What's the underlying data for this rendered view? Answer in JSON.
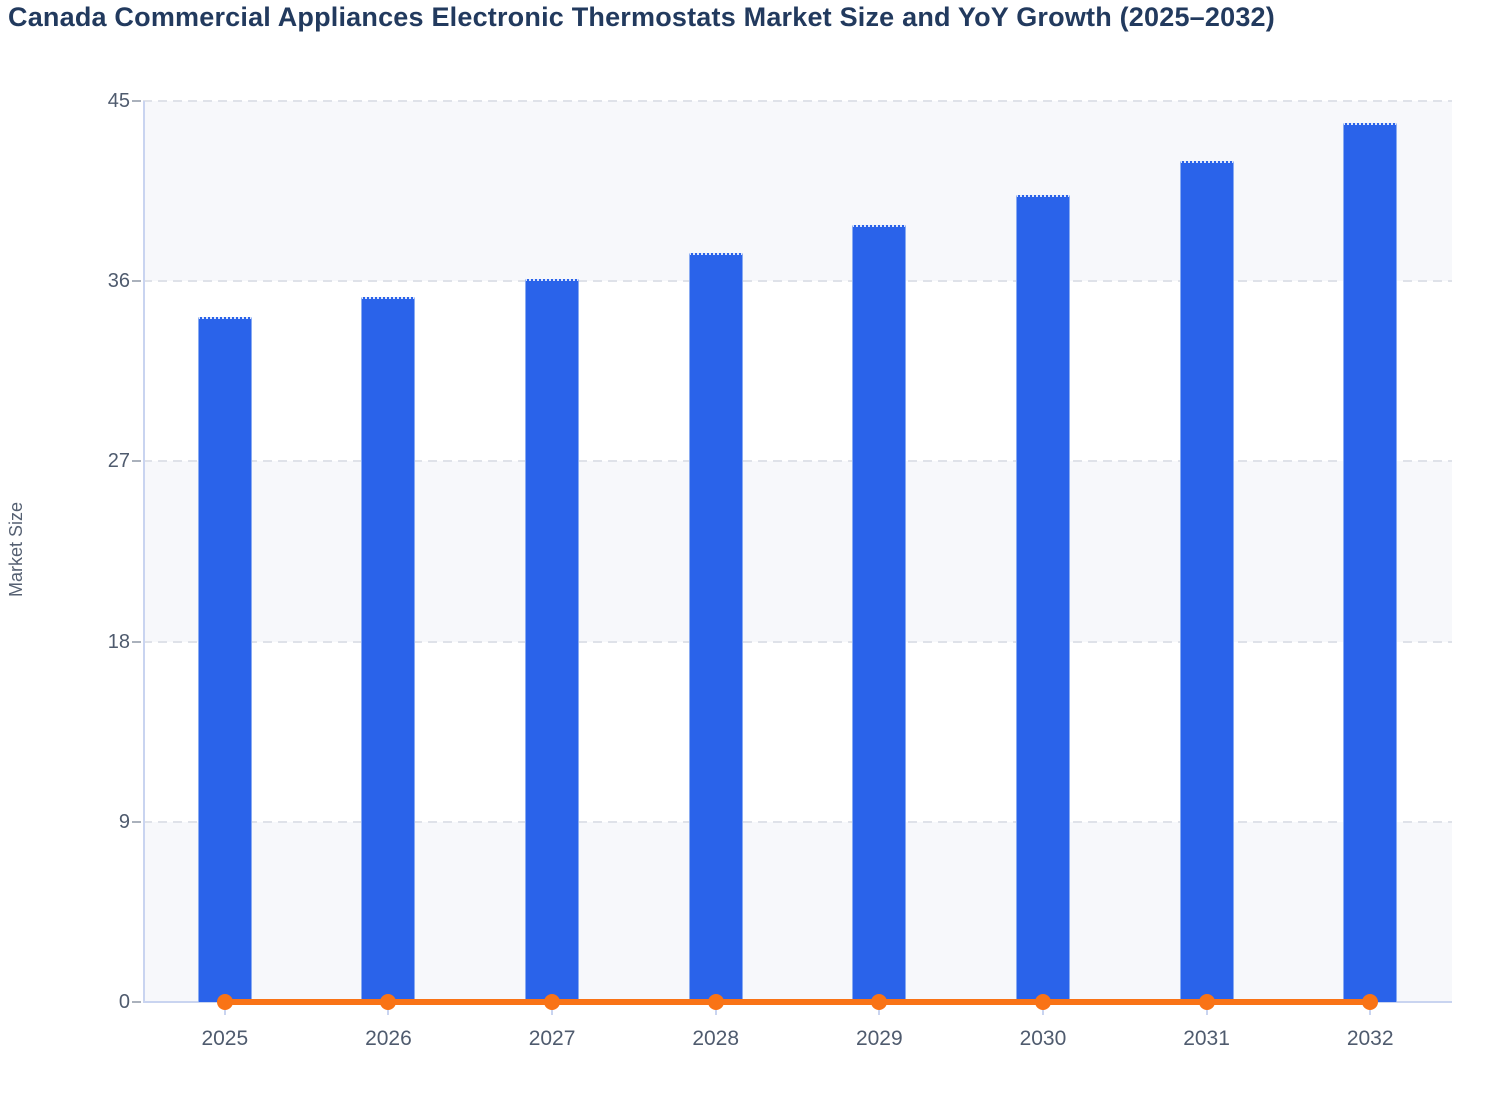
{
  "header": {
    "title": "Canada Commercial Appliances Electronic Thermostats Market Size and YoY Growth (2025–2032)"
  },
  "chart_data": {
    "type": "bar",
    "title": "Canada Commercial Appliances Electronic Thermostats Market Size and YoY Growth (2025–2032)",
    "categories": [
      "2025",
      "2026",
      "2027",
      "2028",
      "2029",
      "2030",
      "2031",
      "2032"
    ],
    "series": [
      {
        "name": "Market Size",
        "type": "bar",
        "color": "#2a63ea",
        "values": [
          34.2,
          35.2,
          36.1,
          37.4,
          38.8,
          40.3,
          42.0,
          43.9
        ]
      },
      {
        "name": "YoY Growth",
        "type": "line",
        "color": "#f97316",
        "values": [
          0,
          0,
          0,
          0,
          0,
          0,
          0,
          0
        ]
      }
    ],
    "xlabel": "",
    "ylabel": "Market Size",
    "ylim": [
      0,
      45
    ],
    "yticks": [
      0,
      9,
      18,
      27,
      36,
      45
    ],
    "grid": "horizontal-dashed",
    "legend_position": "none",
    "colors": {
      "bar": "#2a63ea",
      "line": "#f97316",
      "plot_band": "#f7f8fb",
      "gridline": "#dfe2e9",
      "axis": "#c9d4f0",
      "tick_text": "#4f5b6e",
      "title_text": "#223a5e"
    }
  }
}
